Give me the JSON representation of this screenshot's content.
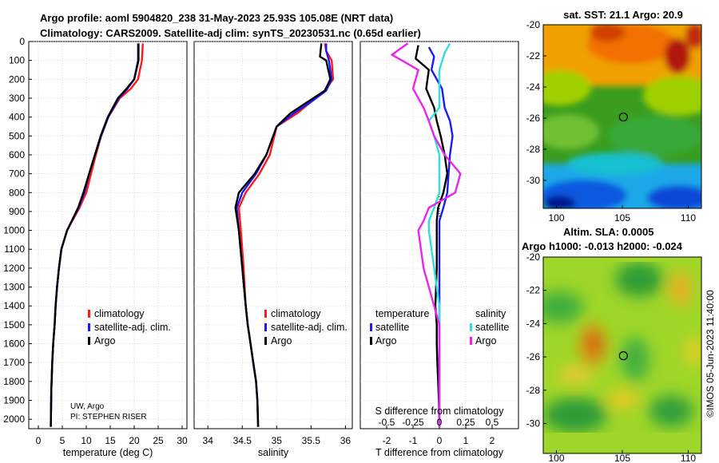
{
  "figure": {
    "title_line1": "Argo profile: aoml 5904820_238 31-May-2023 25.93S 105.08E (NRT data)",
    "title_line2": "Climatology: CARS2009. Satellite-adj clim: synTS_20230531.nc (0.65d earlier)",
    "credit_line1": "UW, Argo",
    "credit_line2": "PI: STEPHEN RISER",
    "stamp": "©IMOS 05-Jun-2023 11:40:00"
  },
  "colors": {
    "climatology": "#ff1a1a",
    "satellite": "#1a1aff",
    "argo": "#000000",
    "sal_satellite": "#33dddd",
    "sal_argo": "#ee22ee"
  },
  "chart_data": [
    {
      "type": "line",
      "name": "temperature-profile",
      "xlabel": "temperature (deg C)",
      "ylabel": "",
      "xlim": [
        -2,
        31
      ],
      "ylim": [
        2050,
        0
      ],
      "xticks": [
        0,
        5,
        10,
        15,
        20,
        25,
        30
      ],
      "yticks": [
        0,
        100,
        200,
        300,
        400,
        500,
        600,
        700,
        800,
        900,
        1000,
        1100,
        1200,
        1300,
        1400,
        1500,
        1600,
        1700,
        1800,
        1900,
        2000
      ],
      "grid": true,
      "legend": [
        "climatology",
        "satellite-adj. clim.",
        "Argo"
      ],
      "legend_location": "lower-right",
      "series": [
        {
          "name": "climatology",
          "color_key": "climatology",
          "x": [
            21.8,
            21.6,
            20.8,
            19.3,
            17.0,
            14.6,
            13.1,
            12.0,
            11.0,
            10.0,
            8.6,
            6.0,
            4.8,
            4.3,
            3.9,
            3.6,
            3.4,
            3.1,
            2.9,
            2.7,
            2.6
          ],
          "y": [
            10,
            100,
            200,
            250,
            300,
            400,
            500,
            600,
            700,
            800,
            880,
            1000,
            1100,
            1200,
            1300,
            1400,
            1500,
            1600,
            1700,
            1850,
            2040
          ]
        },
        {
          "name": "satellite-adj. clim.",
          "color_key": "satellite",
          "x": [
            20.8,
            20.8,
            20.0,
            18.6,
            16.8,
            14.6,
            13.1,
            11.8,
            10.6,
            9.6,
            8.4,
            6.0,
            4.8,
            4.3,
            3.9,
            3.6,
            3.4,
            3.1,
            2.9,
            2.7,
            2.6
          ],
          "y": [
            10,
            100,
            200,
            250,
            300,
            400,
            500,
            600,
            700,
            800,
            880,
            1000,
            1100,
            1200,
            1300,
            1400,
            1500,
            1600,
            1700,
            1850,
            2040
          ]
        },
        {
          "name": "Argo",
          "color_key": "argo",
          "x": [
            20.9,
            20.9,
            20.0,
            18.4,
            16.6,
            14.5,
            13.0,
            11.8,
            10.6,
            9.4,
            8.3,
            6.0,
            4.8,
            4.3,
            3.9,
            3.6,
            3.4,
            3.1,
            2.9,
            2.7,
            2.6
          ],
          "y": [
            10,
            100,
            200,
            250,
            300,
            400,
            500,
            600,
            700,
            800,
            880,
            1000,
            1100,
            1200,
            1300,
            1400,
            1500,
            1600,
            1700,
            1850,
            2040
          ]
        }
      ]
    },
    {
      "type": "line",
      "name": "salinity-profile",
      "xlabel": "salinity",
      "xlim": [
        33.8,
        36.1
      ],
      "ylim": [
        2050,
        0
      ],
      "xticks": [
        34,
        34.5,
        35,
        35.5,
        36
      ],
      "xticklabels": [
        "34",
        "34.5",
        "35",
        "35.5",
        "36"
      ],
      "grid": true,
      "legend": [
        "climatology",
        "satellite-adj. clim.",
        "Argo"
      ],
      "legend_location": "lower-right",
      "series": [
        {
          "name": "climatology",
          "color_key": "climatology",
          "x": [
            35.7,
            35.72,
            35.8,
            35.82,
            35.7,
            35.5,
            35.3,
            35.0,
            34.9,
            34.75,
            34.55,
            34.45,
            34.48,
            34.52,
            34.55,
            34.58,
            34.62,
            34.66,
            34.7,
            34.72,
            34.73
          ],
          "y": [
            10,
            50,
            100,
            200,
            260,
            320,
            380,
            450,
            600,
            700,
            800,
            880,
            1000,
            1200,
            1400,
            1500,
            1600,
            1700,
            1800,
            1900,
            2040
          ]
        },
        {
          "name": "satellite-adj. clim.",
          "color_key": "satellite",
          "x": [
            35.72,
            35.72,
            35.76,
            35.8,
            35.72,
            35.5,
            35.25,
            35.0,
            34.85,
            34.7,
            34.5,
            34.42,
            34.45,
            34.5,
            34.55,
            34.58,
            34.62,
            34.66,
            34.7,
            34.72,
            34.73
          ],
          "y": [
            10,
            50,
            100,
            200,
            260,
            320,
            380,
            450,
            600,
            700,
            800,
            880,
            1000,
            1200,
            1400,
            1500,
            1600,
            1700,
            1800,
            1900,
            2040
          ]
        },
        {
          "name": "Argo",
          "color_key": "argo",
          "x": [
            35.65,
            35.63,
            35.72,
            35.78,
            35.7,
            35.45,
            35.2,
            35.0,
            34.85,
            34.68,
            34.45,
            34.4,
            34.45,
            34.5,
            34.55,
            34.58,
            34.62,
            34.66,
            34.7,
            34.72,
            34.73
          ],
          "y": [
            10,
            80,
            100,
            200,
            260,
            320,
            380,
            450,
            600,
            700,
            800,
            880,
            1000,
            1200,
            1400,
            1500,
            1600,
            1700,
            1800,
            1900,
            2040
          ]
        }
      ]
    },
    {
      "type": "line",
      "name": "difference-profile",
      "xlabel": "T difference from climatology",
      "xlabel_top": "S difference from climatology",
      "xlim": [
        -3,
        3
      ],
      "ylim": [
        2050,
        0
      ],
      "xticks": [
        -2,
        -1,
        0,
        1,
        2
      ],
      "xticklabels": [
        "-2",
        "-1",
        "0",
        "1",
        "2"
      ],
      "sal_xticks": [
        -0.5,
        -0.25,
        0,
        0.25,
        0.5
      ],
      "sal_xticklabels": [
        "-0.5",
        "-0.25",
        "0",
        "0.25",
        "0.5"
      ],
      "sal_scale": 4,
      "grid": true,
      "legend_titles": [
        "temperature",
        "salinity"
      ],
      "legend": [
        "satellite",
        "Argo",
        "satellite",
        "Argo"
      ],
      "legend_location": "lower-center",
      "series": [
        {
          "name": "T satellite",
          "color_key": "satellite",
          "x": [
            -0.4,
            -0.2,
            -0.3,
            0.1,
            0.2,
            0.4,
            0.5,
            0.4,
            0.35,
            0.3,
            0.15,
            0.0,
            0.0,
            0.0,
            0.0,
            0.0,
            0.0,
            0.0,
            0.0,
            0.0,
            0.0
          ],
          "y": [
            30,
            80,
            150,
            250,
            350,
            420,
            500,
            600,
            700,
            800,
            880,
            950,
            1000,
            1200,
            1400,
            1500,
            1600,
            1700,
            1800,
            1900,
            2040
          ]
        },
        {
          "name": "T Argo",
          "color_key": "argo",
          "x": [
            -0.8,
            -0.9,
            -0.4,
            -0.5,
            -0.2,
            -0.1,
            0.05,
            0.2,
            0.3,
            0.15,
            -0.05,
            -0.1,
            -0.1,
            -0.1,
            -0.15,
            -0.1,
            -0.1,
            -0.08,
            -0.05,
            -0.02,
            0.0
          ],
          "y": [
            20,
            90,
            150,
            250,
            350,
            420,
            500,
            600,
            700,
            800,
            880,
            950,
            1000,
            1200,
            1400,
            1500,
            1600,
            1700,
            1800,
            1900,
            2040
          ]
        },
        {
          "name": "S satellite",
          "color_key": "sal_satellite",
          "x": [
            0.1,
            0.05,
            0.0,
            0.0,
            0.0,
            -0.1,
            -0.05,
            0.0,
            0.0,
            0.0,
            -0.05,
            -0.1,
            -0.1,
            -0.05,
            0.0,
            0.0,
            0.0,
            0.0,
            0.0,
            0.0,
            0.0
          ],
          "y": [
            10,
            60,
            150,
            250,
            350,
            420,
            500,
            600,
            700,
            800,
            880,
            950,
            1000,
            1200,
            1400,
            1500,
            1600,
            1700,
            1800,
            1900,
            2040
          ]
        },
        {
          "name": "S Argo",
          "color_key": "sal_argo",
          "x": [
            -0.3,
            -0.45,
            -0.2,
            -0.25,
            -0.15,
            -0.1,
            -0.05,
            0.05,
            0.2,
            0.15,
            -0.1,
            -0.15,
            -0.2,
            -0.15,
            -0.05,
            0.0,
            0.0,
            0.0,
            0.0,
            0.0,
            0.0
          ],
          "y": [
            10,
            70,
            150,
            250,
            350,
            420,
            500,
            600,
            700,
            800,
            880,
            950,
            1000,
            1200,
            1400,
            1500,
            1600,
            1700,
            1800,
            1900,
            2040
          ]
        }
      ]
    },
    {
      "type": "heatmap",
      "name": "sst-map",
      "title": "sat. SST: 21.1 Argo: 20.9",
      "xlim": [
        99,
        111
      ],
      "ylim": [
        -31.8,
        -20
      ],
      "xticks": [
        100,
        105,
        110
      ],
      "yticks": [
        -20,
        -22,
        -24,
        -26,
        -28,
        -30
      ],
      "marker": {
        "lon": 105.08,
        "lat": -25.93
      },
      "grid": false
    },
    {
      "type": "heatmap",
      "name": "sla-map",
      "title_line1": "Altim. SLA: 0.0005",
      "title_line2": "Argo h1000: -0.013 h2000: -0.024",
      "xlim": [
        99,
        111
      ],
      "ylim": [
        -31.8,
        -20
      ],
      "xticks": [
        100,
        105,
        110
      ],
      "yticks": [
        -20,
        -22,
        -24,
        -26,
        -28,
        -30
      ],
      "marker": {
        "lon": 105.08,
        "lat": -25.93
      },
      "grid": false
    }
  ]
}
